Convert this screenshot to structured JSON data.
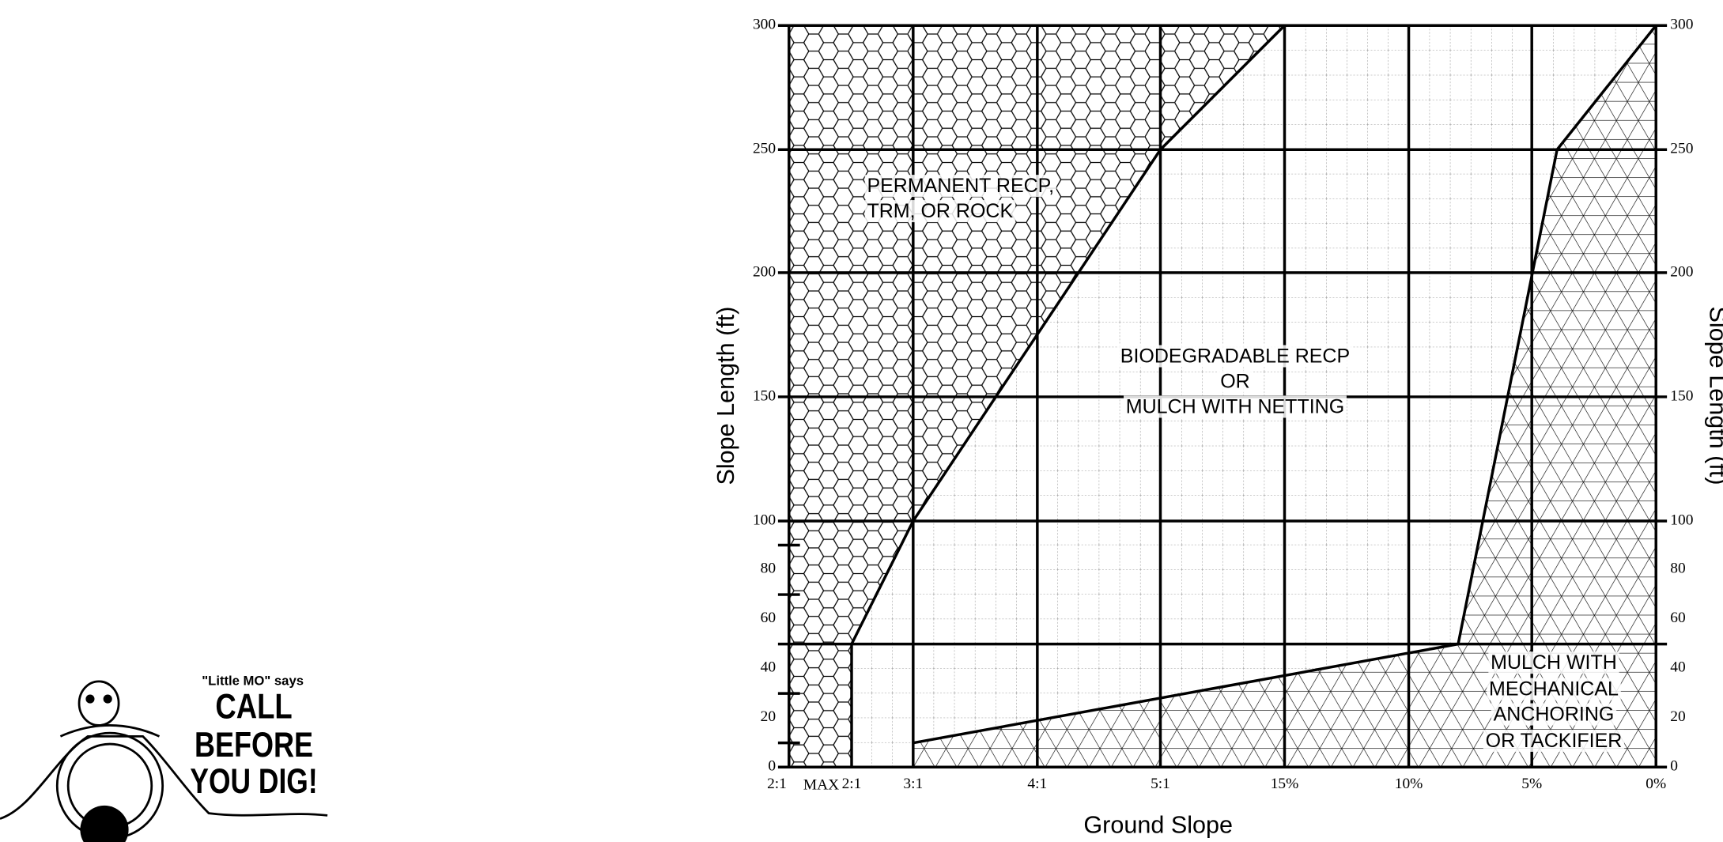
{
  "axes": {
    "y_title": "Slope Length (ft)",
    "y2_title": "Slope Length (ft)",
    "x_title": "Ground Slope",
    "y_ticks": [
      "300",
      "250",
      "200",
      "150",
      "100",
      "80",
      "60",
      "40",
      "20",
      "0"
    ],
    "x_ticks": [
      "2:1",
      "2:1",
      "3:1",
      "4:1",
      "5:1",
      "15%",
      "10%",
      "5%",
      "0%"
    ],
    "x_tick_note": "MAX"
  },
  "regions": [
    {
      "lines": [
        "PERMANENT RECP,",
        "TRM, OR ROCK"
      ]
    },
    {
      "lines": [
        "BIODEGRADABLE  RECP",
        "OR",
        "MULCH  WITH  NETTING"
      ]
    },
    {
      "lines": [
        "MULCH WITH",
        "MECHANICAL",
        "ANCHORING",
        "OR TACKIFIER"
      ]
    }
  ],
  "logo": {
    "tagline": "\"Little MO\" says",
    "lines": [
      "CALL",
      "BEFORE",
      "YOU DIG!"
    ]
  }
}
